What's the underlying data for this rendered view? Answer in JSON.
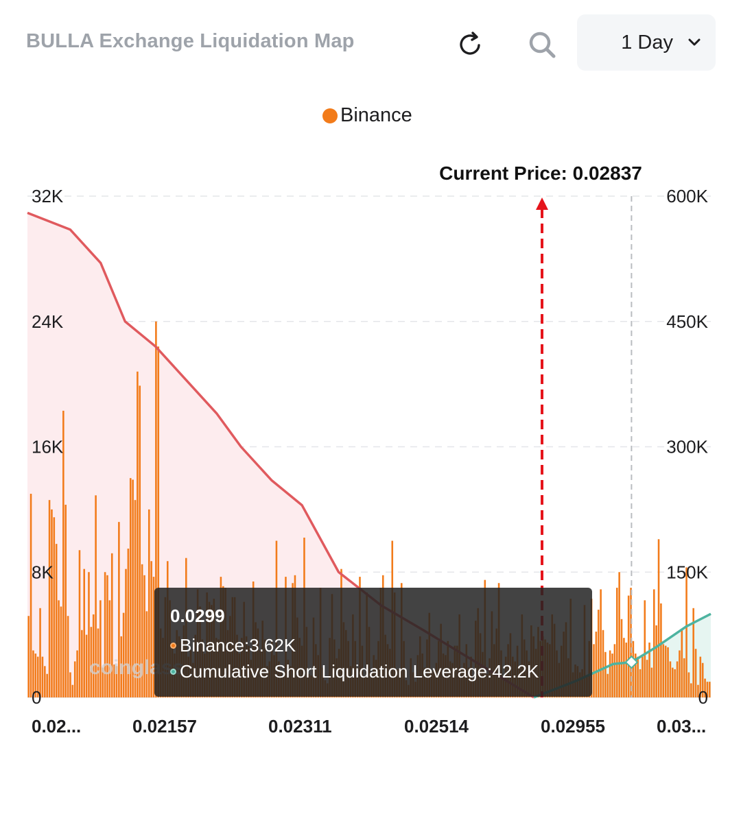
{
  "header": {
    "title": "BULLA Exchange Liquidation Map",
    "refresh_icon": "refresh-icon",
    "search_icon": "search-icon",
    "range": {
      "selected": "1 Day",
      "icon": "chevron-down-icon"
    }
  },
  "legend": {
    "label": "Binance",
    "color": "#f27b1a"
  },
  "colors": {
    "bar": "#f27b1a",
    "long_line": "#e05a5e",
    "long_fill": "#fdecee",
    "short_line": "#4db3a0",
    "short_fill": "#e6f5f1",
    "current_price": "#e5141b"
  },
  "watermark": "coinglass",
  "chart_data": {
    "type": "bar",
    "current_price_label": "Current Price: 0.02837",
    "x_tick_labels": [
      "0.02...",
      "0.02157",
      "0.02311",
      "0.02514",
      "0.02955",
      "0.03..."
    ],
    "y_left": {
      "ticks": [
        "0",
        "8K",
        "16K",
        "24K",
        "32K"
      ],
      "ylim": [
        0,
        32000
      ]
    },
    "y_right": {
      "ticks": [
        "0",
        "150K",
        "300K",
        "450K",
        "600K"
      ],
      "ylim": [
        0,
        600000
      ]
    },
    "series": [
      {
        "name": "Binance",
        "values": [
          5200,
          13000,
          3000,
          2800,
          2600,
          5700,
          2600,
          2000,
          1500,
          12600,
          12000,
          11500,
          9800,
          6200,
          5800,
          18300,
          12300,
          5200,
          1600,
          800,
          2300,
          3000,
          9400,
          4300,
          8200,
          4000,
          8000,
          4500,
          5300,
          12900,
          4400,
          6200,
          1900,
          8000,
          7800,
          6200,
          9200,
          2100,
          2000,
          11200,
          3900,
          5400,
          8200,
          9500,
          14000,
          13900,
          12600,
          20800,
          19900,
          8500,
          7800,
          5500,
          12000,
          8700,
          7700,
          24000,
          22400,
          4400,
          3800,
          6400,
          8700,
          6200,
          3500,
          2800,
          4300,
          3900,
          3600,
          4600,
          8900,
          2600,
          3000,
          2200,
          4000,
          6900,
          5800,
          3700,
          2800,
          6700,
          6100,
          5900,
          6300,
          3800,
          3700,
          7700,
          7100,
          7000,
          4300,
          5200,
          6400,
          6400,
          4000,
          2800,
          3800,
          6100,
          3900,
          3300,
          2400,
          7400,
          4800,
          4400,
          3000,
          4900,
          3700,
          2000,
          2300,
          3620,
          2700,
          10000,
          2300,
          1600,
          1400,
          7700,
          2400,
          2000,
          7300,
          7800,
          5100,
          3800,
          3300,
          10200,
          4500,
          1500,
          1400,
          5100,
          3400,
          2700,
          7000,
          1900,
          1100,
          900,
          3800,
          6600,
          3700,
          2500,
          3100,
          8200,
          4800,
          4300,
          3600,
          2000,
          5300,
          3600,
          1900,
          7700,
          3300,
          1300,
          6700,
          4500,
          1600,
          2700,
          2400,
          3600,
          7000,
          7800,
          4000,
          3400,
          3100,
          10000,
          6700,
          1800,
          1800,
          7300,
          3600,
          1100,
          800,
          2500,
          1600,
          1000,
          2700,
          3900,
          2800,
          1900,
          3700,
          5400,
          1700,
          1800,
          2200,
          3600,
          4700,
          2800,
          2700,
          3600,
          2300,
          2200,
          3300,
          3300,
          5300,
          1800,
          2200,
          3400,
          1900,
          2600,
          1200,
          4900,
          5700,
          4100,
          2900,
          7500,
          1500,
          2500,
          5500,
          3400,
          4400,
          7300,
          3000,
          1200,
          2600,
          3400,
          4100,
          2600,
          2300,
          3300,
          2000,
          5300,
          3700,
          3000,
          2300,
          4600,
          3900,
          3100,
          4500,
          3600,
          3900,
          3700,
          3500,
          3400,
          5300,
          4700,
          3000,
          2200,
          3300,
          4200,
          4800,
          2500,
          6300,
          1600,
          2100,
          2000,
          1600,
          1800,
          5900,
          1400,
          3600,
          6300,
          3400,
          4200,
          5600,
          6900,
          4300,
          2900,
          1500,
          3000,
          2800,
          3400,
          7000,
          8000,
          5000,
          3800,
          3500,
          6500,
          7000,
          3600,
          2800,
          2600,
          1800,
          2600,
          6200,
          2400,
          3500,
          1900,
          6900,
          4600,
          10100,
          6000,
          3400,
          3300,
          3200,
          2300,
          1900,
          1800,
          2300,
          3000,
          4400,
          2500,
          8300,
          1600,
          900,
          5700,
          3100,
          800,
          2600,
          2200,
          1200,
          1000,
          1000
        ],
        "display": "sampled"
      }
    ],
    "long_cumulative": {
      "x": [
        0.02,
        0.0207,
        0.0212,
        0.0216,
        0.0221,
        0.0226,
        0.0231,
        0.0235,
        0.024,
        0.0245,
        0.0251,
        0.0258,
        0.0265,
        0.0274,
        0.0283
      ],
      "y": [
        580000,
        560000,
        520000,
        450000,
        420000,
        380000,
        340000,
        300000,
        260000,
        230000,
        150000,
        110000,
        80000,
        40000,
        0
      ]
    },
    "short_cumulative": {
      "x": [
        0.0283,
        0.029,
        0.0296,
        0.0299,
        0.0303,
        0.0308,
        0.0312
      ],
      "y": [
        0,
        20000,
        40000,
        42200,
        60000,
        85000,
        100000
      ]
    },
    "tooltip": {
      "title": "0.0299",
      "binance": "Binance:3.62K",
      "cumulative": "Cumulative Short Liquidation Leverage:42.2K"
    }
  }
}
